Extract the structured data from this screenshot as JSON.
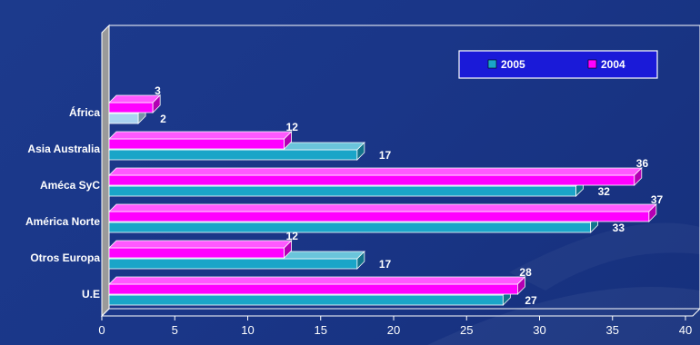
{
  "chart_data": {
    "type": "bar",
    "orientation": "horizontal",
    "title": "",
    "xlabel": "",
    "ylabel": "",
    "categories": [
      "África",
      "Asia Australia",
      "Améca SyC",
      "América Norte",
      "Otros Europa",
      "U.E"
    ],
    "series": [
      {
        "name": "2005",
        "values": [
          2,
          17,
          32,
          33,
          17,
          27
        ],
        "color": "#1aa5c8"
      },
      {
        "name": "2004",
        "values": [
          3,
          12,
          36,
          37,
          12,
          28
        ],
        "color": "#ff00ff"
      }
    ],
    "xlim": [
      0,
      40
    ],
    "xticks": [
      0,
      5,
      10,
      15,
      20,
      25,
      30,
      35,
      40
    ],
    "grid": false,
    "legend_position": "top-right",
    "three_d": true
  },
  "colors": {
    "background": "#1c3a8c",
    "africa_2005": "#a9d3f0",
    "wall": "#9a9a9a",
    "text": "#ffffff"
  }
}
